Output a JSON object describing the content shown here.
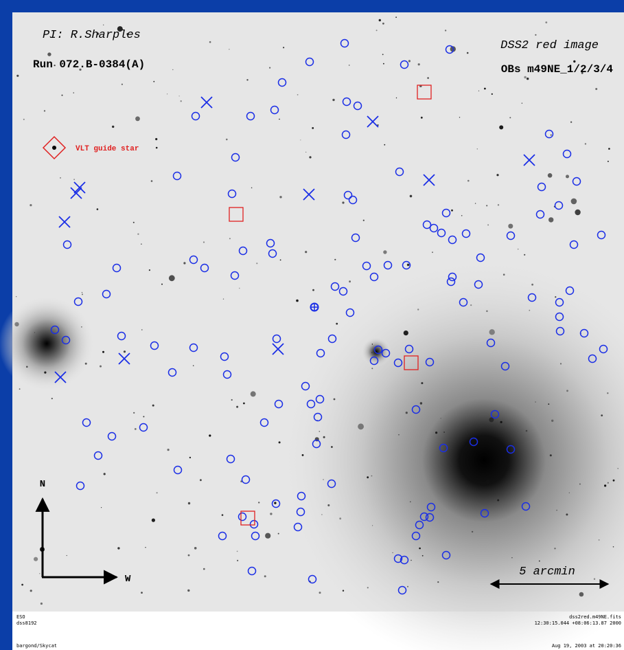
{
  "header": {
    "pi": "PI: R.Sharples",
    "run": "Run 072.B-0384(A)",
    "image": "DSS2 red image",
    "obs": "OBs m49NE_1/2/3/4"
  },
  "legend": {
    "guide_star": "VLT guide star"
  },
  "compass": {
    "north": "N",
    "west": "W"
  },
  "scale": {
    "label": "5 arcmin"
  },
  "footer": {
    "left": [
      "ESO",
      "dss8192",
      "bargond/Skycat"
    ],
    "right": [
      "dss2red.m49NE.fits",
      "12:30:15.044 +08:06:13.87 2000",
      "Aug 19, 2003 at 20:20:36"
    ]
  }
}
